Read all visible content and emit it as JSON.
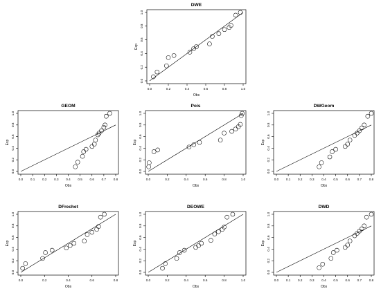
{
  "chart_data": [
    {
      "type": "scatter",
      "title": "DWE",
      "xlabel": "Obs",
      "ylabel": "Exp",
      "xlim": [
        0,
        1
      ],
      "ylim": [
        0,
        1
      ],
      "xticks": [
        "0.0",
        "0.2",
        "0.4",
        "0.6",
        "0.8",
        "1.0"
      ],
      "yticks": [
        "0.0",
        "0.2",
        "0.4",
        "0.6",
        "0.8",
        "1.0"
      ],
      "reference_line": "y = x",
      "points": [
        [
          0.04,
          0.06
        ],
        [
          0.08,
          0.13
        ],
        [
          0.18,
          0.22
        ],
        [
          0.2,
          0.34
        ],
        [
          0.26,
          0.37
        ],
        [
          0.43,
          0.42
        ],
        [
          0.47,
          0.47
        ],
        [
          0.5,
          0.5
        ],
        [
          0.64,
          0.54
        ],
        [
          0.67,
          0.65
        ],
        [
          0.74,
          0.69
        ],
        [
          0.8,
          0.75
        ],
        [
          0.85,
          0.78
        ],
        [
          0.87,
          0.81
        ],
        [
          0.92,
          0.96
        ],
        [
          0.97,
          1.0
        ]
      ]
    },
    {
      "type": "scatter",
      "title": "GEOM",
      "xlabel": "Obs",
      "ylabel": "Exp",
      "xlim": [
        0,
        0.8
      ],
      "ylim": [
        0,
        1
      ],
      "xticks": [
        "0.0",
        "0.1",
        "0.2",
        "0.3",
        "0.4",
        "0.5",
        "0.6",
        "0.7",
        "0.8"
      ],
      "yticks": [
        "0.0",
        "0.2",
        "0.4",
        "0.6",
        "0.8",
        "1.0"
      ],
      "reference_line": "y = x",
      "points": [
        [
          0.46,
          0.08
        ],
        [
          0.48,
          0.16
        ],
        [
          0.52,
          0.26
        ],
        [
          0.53,
          0.34
        ],
        [
          0.55,
          0.38
        ],
        [
          0.6,
          0.43
        ],
        [
          0.62,
          0.47
        ],
        [
          0.63,
          0.54
        ],
        [
          0.65,
          0.63
        ],
        [
          0.66,
          0.66
        ],
        [
          0.68,
          0.7
        ],
        [
          0.7,
          0.76
        ],
        [
          0.71,
          0.8
        ],
        [
          0.72,
          0.95
        ],
        [
          0.75,
          1.0
        ]
      ]
    },
    {
      "type": "scatter",
      "title": "Pois",
      "xlabel": "Obs",
      "ylabel": "Exp",
      "xlim": [
        0,
        1
      ],
      "ylim": [
        0,
        1
      ],
      "xticks": [
        "0.0",
        "0.2",
        "0.4",
        "0.6",
        "0.8",
        "1.0"
      ],
      "yticks": [
        "0.0",
        "0.2",
        "0.4",
        "0.6",
        "0.8",
        "1.0"
      ],
      "reference_line": "y = x",
      "points": [
        [
          0.005,
          0.08
        ],
        [
          0.01,
          0.15
        ],
        [
          0.06,
          0.34
        ],
        [
          0.1,
          0.37
        ],
        [
          0.43,
          0.42
        ],
        [
          0.48,
          0.46
        ],
        [
          0.54,
          0.5
        ],
        [
          0.76,
          0.54
        ],
        [
          0.8,
          0.66
        ],
        [
          0.88,
          0.69
        ],
        [
          0.92,
          0.73
        ],
        [
          0.95,
          0.77
        ],
        [
          0.97,
          0.81
        ],
        [
          0.98,
          0.96
        ],
        [
          0.99,
          1.0
        ]
      ]
    },
    {
      "type": "scatter",
      "title": "DWGeom",
      "xlabel": "Obs",
      "ylabel": "Exp",
      "xlim": [
        0,
        0.8
      ],
      "ylim": [
        0,
        1
      ],
      "xticks": [
        "0.0",
        "0.1",
        "0.2",
        "0.3",
        "0.4",
        "0.5",
        "0.6",
        "0.7",
        "0.8"
      ],
      "yticks": [
        "0.0",
        "0.2",
        "0.4",
        "0.6",
        "0.8",
        "1.0"
      ],
      "reference_line": "y = x",
      "points": [
        [
          0.36,
          0.08
        ],
        [
          0.38,
          0.15
        ],
        [
          0.45,
          0.25
        ],
        [
          0.47,
          0.34
        ],
        [
          0.5,
          0.38
        ],
        [
          0.58,
          0.43
        ],
        [
          0.6,
          0.47
        ],
        [
          0.62,
          0.54
        ],
        [
          0.66,
          0.62
        ],
        [
          0.68,
          0.66
        ],
        [
          0.7,
          0.7
        ],
        [
          0.72,
          0.75
        ],
        [
          0.74,
          0.8
        ],
        [
          0.77,
          0.95
        ],
        [
          0.8,
          1.0
        ]
      ]
    },
    {
      "type": "scatter",
      "title": "DFrechet",
      "xlabel": "Obs",
      "ylabel": "Exp",
      "xlim": [
        0,
        1
      ],
      "ylim": [
        0,
        1
      ],
      "xticks": [
        "0.0",
        "0.2",
        "0.4",
        "0.6",
        "0.8"
      ],
      "yticks": [
        "0.0",
        "0.2",
        "0.4",
        "0.6",
        "0.8",
        "1.0"
      ],
      "reference_line": "y = x",
      "points": [
        [
          0.02,
          0.07
        ],
        [
          0.05,
          0.15
        ],
        [
          0.23,
          0.24
        ],
        [
          0.26,
          0.34
        ],
        [
          0.33,
          0.38
        ],
        [
          0.48,
          0.42
        ],
        [
          0.52,
          0.46
        ],
        [
          0.56,
          0.5
        ],
        [
          0.67,
          0.54
        ],
        [
          0.7,
          0.65
        ],
        [
          0.75,
          0.69
        ],
        [
          0.8,
          0.74
        ],
        [
          0.82,
          0.79
        ],
        [
          0.84,
          0.95
        ],
        [
          0.88,
          1.0
        ]
      ]
    },
    {
      "type": "scatter",
      "title": "DEOWE",
      "xlabel": "Obs",
      "ylabel": "Exp",
      "xlim": [
        0,
        1
      ],
      "ylim": [
        0,
        1
      ],
      "xticks": [
        "0.0",
        "0.2",
        "0.4",
        "0.6",
        "0.8",
        "1.0"
      ],
      "yticks": [
        "0.0",
        "0.2",
        "0.4",
        "0.6",
        "0.8",
        "1.0"
      ],
      "reference_line": "y = x",
      "points": [
        [
          0.15,
          0.07
        ],
        [
          0.18,
          0.15
        ],
        [
          0.3,
          0.24
        ],
        [
          0.33,
          0.34
        ],
        [
          0.38,
          0.38
        ],
        [
          0.5,
          0.43
        ],
        [
          0.53,
          0.46
        ],
        [
          0.56,
          0.5
        ],
        [
          0.66,
          0.55
        ],
        [
          0.7,
          0.66
        ],
        [
          0.74,
          0.7
        ],
        [
          0.78,
          0.74
        ],
        [
          0.8,
          0.78
        ],
        [
          0.83,
          0.95
        ],
        [
          0.89,
          1.0
        ]
      ]
    },
    {
      "type": "scatter",
      "title": "DWD",
      "xlabel": "Obs",
      "ylabel": "Exp",
      "xlim": [
        0,
        0.8
      ],
      "ylim": [
        0,
        1
      ],
      "xticks": [
        "0.0",
        "0.1",
        "0.2",
        "0.3",
        "0.4",
        "0.5",
        "0.6",
        "0.7",
        "0.8"
      ],
      "yticks": [
        "0.0",
        "0.2",
        "0.4",
        "0.6",
        "0.8",
        "1.0"
      ],
      "reference_line": "y = x",
      "points": [
        [
          0.36,
          0.08
        ],
        [
          0.39,
          0.14
        ],
        [
          0.46,
          0.24
        ],
        [
          0.48,
          0.34
        ],
        [
          0.51,
          0.38
        ],
        [
          0.58,
          0.43
        ],
        [
          0.6,
          0.47
        ],
        [
          0.62,
          0.54
        ],
        [
          0.66,
          0.63
        ],
        [
          0.68,
          0.67
        ],
        [
          0.7,
          0.71
        ],
        [
          0.72,
          0.75
        ],
        [
          0.74,
          0.8
        ],
        [
          0.76,
          0.95
        ],
        [
          0.8,
          1.0
        ]
      ]
    }
  ]
}
